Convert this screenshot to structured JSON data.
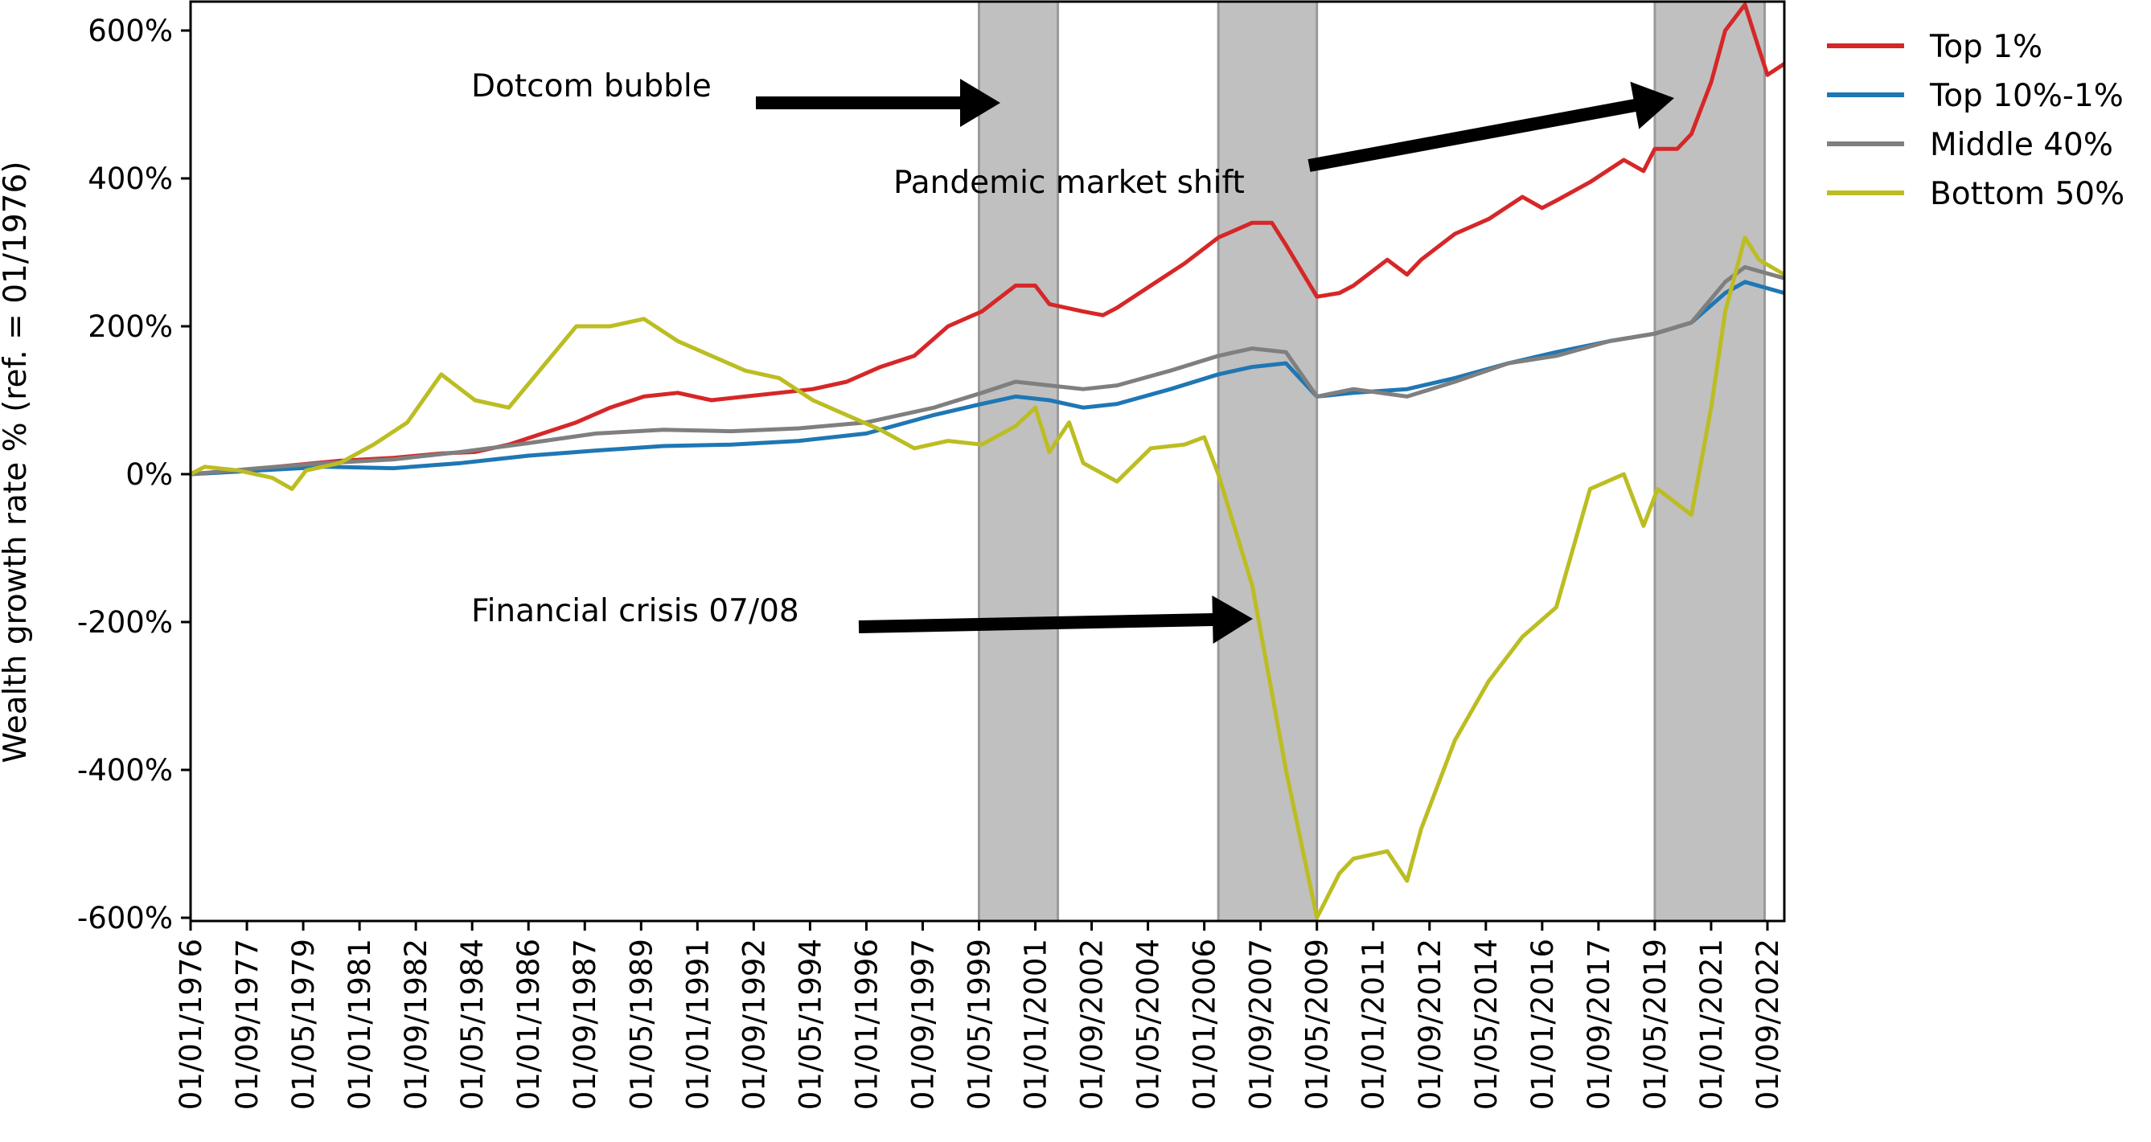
{
  "chart_data": {
    "type": "line",
    "title": "",
    "xlabel": "",
    "ylabel": "Wealth growth rate % (ref. = 01/1976)",
    "x_range": [
      "1976-01",
      "2023-03"
    ],
    "ylim": [
      -600,
      650
    ],
    "yticks": [
      -600,
      -400,
      -200,
      0,
      200,
      400,
      600
    ],
    "ytick_labels": [
      "-600%",
      "-400%",
      "-200%",
      "0%",
      "200%",
      "400%",
      "600%"
    ],
    "xtick_labels": [
      "01/01/1976",
      "01/09/1977",
      "01/05/1979",
      "01/01/1981",
      "01/09/1982",
      "01/05/1984",
      "01/01/1986",
      "01/09/1987",
      "01/05/1989",
      "01/01/1991",
      "01/09/1992",
      "01/05/1994",
      "01/01/1996",
      "01/09/1997",
      "01/05/1999",
      "01/01/2001",
      "01/09/2002",
      "01/05/2004",
      "01/01/2006",
      "01/09/2007",
      "01/05/2009",
      "01/01/2011",
      "01/09/2012",
      "01/05/2014",
      "01/01/2016",
      "01/09/2017",
      "01/05/2019",
      "01/01/2021",
      "01/09/2022"
    ],
    "grid": false,
    "legend_position": "outside top-right",
    "shaded_periods": [
      {
        "start": "1999-05",
        "end": "2001-09"
      },
      {
        "start": "2006-06",
        "end": "2009-05"
      },
      {
        "start": "2019-05",
        "end": "2022-08"
      }
    ],
    "annotations": [
      {
        "text": "Dotcom bubble",
        "points_to": [
          "2000-01",
          500
        ]
      },
      {
        "text": "Pandemic market shift",
        "points_to": [
          "2020-02",
          495
        ]
      },
      {
        "text": "Financial crisis 07/08",
        "points_to": [
          "2007-04",
          -200
        ]
      }
    ],
    "series": [
      {
        "name": "Top 1%",
        "color": "#d62728",
        "points": [
          [
            "1976-01",
            0
          ],
          [
            "1977-06",
            5
          ],
          [
            "1979-01",
            12
          ],
          [
            "1980-06",
            18
          ],
          [
            "1982-01",
            22
          ],
          [
            "1983-06",
            28
          ],
          [
            "1984-06",
            30
          ],
          [
            "1985-06",
            40
          ],
          [
            "1986-06",
            55
          ],
          [
            "1987-06",
            70
          ],
          [
            "1988-06",
            90
          ],
          [
            "1989-06",
            105
          ],
          [
            "1990-06",
            110
          ],
          [
            "1991-06",
            100
          ],
          [
            "1992-06",
            105
          ],
          [
            "1993-06",
            110
          ],
          [
            "1994-06",
            115
          ],
          [
            "1995-06",
            125
          ],
          [
            "1996-06",
            145
          ],
          [
            "1997-06",
            160
          ],
          [
            "1998-06",
            200
          ],
          [
            "1999-06",
            220
          ],
          [
            "2000-06",
            255
          ],
          [
            "2001-01",
            255
          ],
          [
            "2001-06",
            230
          ],
          [
            "2002-06",
            220
          ],
          [
            "2003-01",
            215
          ],
          [
            "2003-06",
            225
          ],
          [
            "2004-06",
            255
          ],
          [
            "2005-06",
            285
          ],
          [
            "2006-06",
            320
          ],
          [
            "2007-06",
            340
          ],
          [
            "2008-01",
            340
          ],
          [
            "2008-06",
            310
          ],
          [
            "2009-05",
            240
          ],
          [
            "2010-01",
            245
          ],
          [
            "2010-06",
            255
          ],
          [
            "2011-06",
            290
          ],
          [
            "2012-01",
            270
          ],
          [
            "2012-06",
            290
          ],
          [
            "2013-06",
            325
          ],
          [
            "2014-06",
            345
          ],
          [
            "2015-06",
            375
          ],
          [
            "2016-01",
            360
          ],
          [
            "2016-06",
            370
          ],
          [
            "2017-06",
            395
          ],
          [
            "2018-06",
            425
          ],
          [
            "2019-01",
            410
          ],
          [
            "2019-05",
            440
          ],
          [
            "2020-01",
            440
          ],
          [
            "2020-06",
            460
          ],
          [
            "2021-01",
            530
          ],
          [
            "2021-06",
            600
          ],
          [
            "2022-01",
            635
          ],
          [
            "2022-06",
            575
          ],
          [
            "2022-09",
            540
          ],
          [
            "2023-03",
            555
          ]
        ]
      },
      {
        "name": "Top 10%-1%",
        "color": "#1f77b4",
        "points": [
          [
            "1976-01",
            0
          ],
          [
            "1978-01",
            5
          ],
          [
            "1980-01",
            10
          ],
          [
            "1982-01",
            8
          ],
          [
            "1984-01",
            15
          ],
          [
            "1986-01",
            25
          ],
          [
            "1988-01",
            32
          ],
          [
            "1990-01",
            38
          ],
          [
            "1992-01",
            40
          ],
          [
            "1994-01",
            45
          ],
          [
            "1996-01",
            55
          ],
          [
            "1998-01",
            80
          ],
          [
            "1999-06",
            95
          ],
          [
            "2000-06",
            105
          ],
          [
            "2001-06",
            100
          ],
          [
            "2002-06",
            90
          ],
          [
            "2003-06",
            95
          ],
          [
            "2005-01",
            115
          ],
          [
            "2006-06",
            135
          ],
          [
            "2007-06",
            145
          ],
          [
            "2008-06",
            150
          ],
          [
            "2009-05",
            105
          ],
          [
            "2010-06",
            110
          ],
          [
            "2012-01",
            115
          ],
          [
            "2013-06",
            130
          ],
          [
            "2015-01",
            150
          ],
          [
            "2016-06",
            165
          ],
          [
            "2018-01",
            180
          ],
          [
            "2019-05",
            190
          ],
          [
            "2020-06",
            205
          ],
          [
            "2021-06",
            245
          ],
          [
            "2022-01",
            260
          ],
          [
            "2023-03",
            245
          ]
        ]
      },
      {
        "name": "Middle 40%",
        "color": "#7f7f7f",
        "points": [
          [
            "1976-01",
            0
          ],
          [
            "1978-01",
            8
          ],
          [
            "1980-01",
            15
          ],
          [
            "1982-01",
            20
          ],
          [
            "1984-01",
            30
          ],
          [
            "1986-01",
            42
          ],
          [
            "1988-01",
            55
          ],
          [
            "1990-01",
            60
          ],
          [
            "1992-01",
            58
          ],
          [
            "1994-01",
            62
          ],
          [
            "1996-01",
            70
          ],
          [
            "1998-01",
            90
          ],
          [
            "1999-06",
            110
          ],
          [
            "2000-06",
            125
          ],
          [
            "2001-06",
            120
          ],
          [
            "2002-06",
            115
          ],
          [
            "2003-06",
            120
          ],
          [
            "2005-01",
            140
          ],
          [
            "2006-06",
            160
          ],
          [
            "2007-06",
            170
          ],
          [
            "2008-06",
            165
          ],
          [
            "2009-05",
            105
          ],
          [
            "2010-06",
            115
          ],
          [
            "2012-01",
            105
          ],
          [
            "2013-06",
            125
          ],
          [
            "2015-01,",
            150
          ],
          [
            "2016-06",
            160
          ],
          [
            "2018-01",
            180
          ],
          [
            "2019-05",
            190
          ],
          [
            "2020-06",
            205
          ],
          [
            "2021-06",
            260
          ],
          [
            "2022-01",
            280
          ],
          [
            "2023-03",
            265
          ]
        ]
      },
      {
        "name": "Bottom 50%",
        "color": "#bcbd22",
        "points": [
          [
            "1976-01",
            0
          ],
          [
            "1976-06",
            10
          ],
          [
            "1977-06",
            5
          ],
          [
            "1978-06",
            -5
          ],
          [
            "1979-01",
            -20
          ],
          [
            "1979-06",
            5
          ],
          [
            "1980-06",
            15
          ],
          [
            "1981-06",
            40
          ],
          [
            "1982-06",
            70
          ],
          [
            "1983-06",
            135
          ],
          [
            "1984-06",
            100
          ],
          [
            "1985-06",
            90
          ],
          [
            "1986-06",
            145
          ],
          [
            "1987-06",
            200
          ],
          [
            "1988-06",
            200
          ],
          [
            "1989-06",
            210
          ],
          [
            "1990-06",
            180
          ],
          [
            "1991-06",
            160
          ],
          [
            "1992-06",
            140
          ],
          [
            "1993-06",
            130
          ],
          [
            "1994-06",
            100
          ],
          [
            "1995-06",
            80
          ],
          [
            "1996-06",
            60
          ],
          [
            "1997-06",
            35
          ],
          [
            "1998-06",
            45
          ],
          [
            "1999-06",
            40
          ],
          [
            "2000-06",
            65
          ],
          [
            "2001-01",
            90
          ],
          [
            "2001-06",
            30
          ],
          [
            "2002-01",
            70
          ],
          [
            "2002-06",
            15
          ],
          [
            "2003-06",
            -10
          ],
          [
            "2004-06",
            35
          ],
          [
            "2005-06",
            40
          ],
          [
            "2006-01",
            50
          ],
          [
            "2006-06",
            0
          ],
          [
            "2007-06",
            -150
          ],
          [
            "2008-06",
            -400
          ],
          [
            "2009-05",
            -600
          ],
          [
            "2010-01",
            -540
          ],
          [
            "2010-06",
            -520
          ],
          [
            "2011-06",
            -510
          ],
          [
            "2012-01",
            -550
          ],
          [
            "2012-06",
            -480
          ],
          [
            "2013-06",
            -360
          ],
          [
            "2014-06",
            -280
          ],
          [
            "2015-06",
            -220
          ],
          [
            "2016-06",
            -180
          ],
          [
            "2017-06",
            -20
          ],
          [
            "2018-06",
            0
          ],
          [
            "2019-01",
            -70
          ],
          [
            "2019-06",
            -20
          ],
          [
            "2020-06",
            -55
          ],
          [
            "2021-01",
            90
          ],
          [
            "2021-06",
            220
          ],
          [
            "2022-01",
            320
          ],
          [
            "2022-06",
            290
          ],
          [
            "2023-03",
            270
          ]
        ]
      }
    ]
  }
}
